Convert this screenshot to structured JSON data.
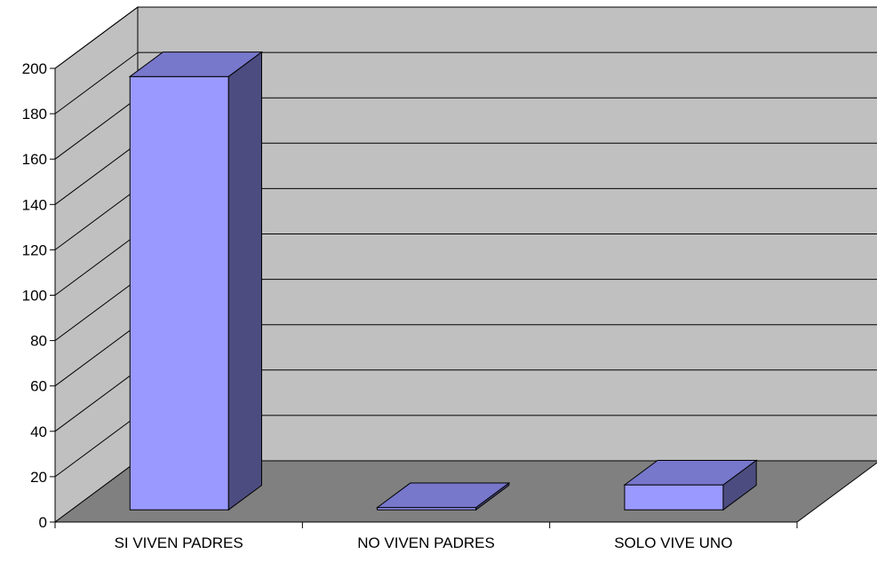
{
  "chart_data": {
    "type": "bar",
    "style": "3d",
    "title": "",
    "xlabel": "",
    "ylabel": "",
    "categories": [
      "SI VIVEN PADRES",
      "NO VIVEN PADRES",
      "SOLO VIVE UNO"
    ],
    "values": [
      191,
      1,
      11
    ],
    "ylim": [
      0,
      200
    ],
    "yticks": [
      0,
      20,
      40,
      60,
      80,
      100,
      120,
      140,
      160,
      180,
      200
    ],
    "grid": true,
    "legend": "none",
    "colors": {
      "bar_front": "#9999ff",
      "bar_top": "#7777cc",
      "bar_side": "#4c4c80",
      "back_wall": "#c0c0c0",
      "floor": "#808080",
      "gridline": "#000000"
    }
  }
}
